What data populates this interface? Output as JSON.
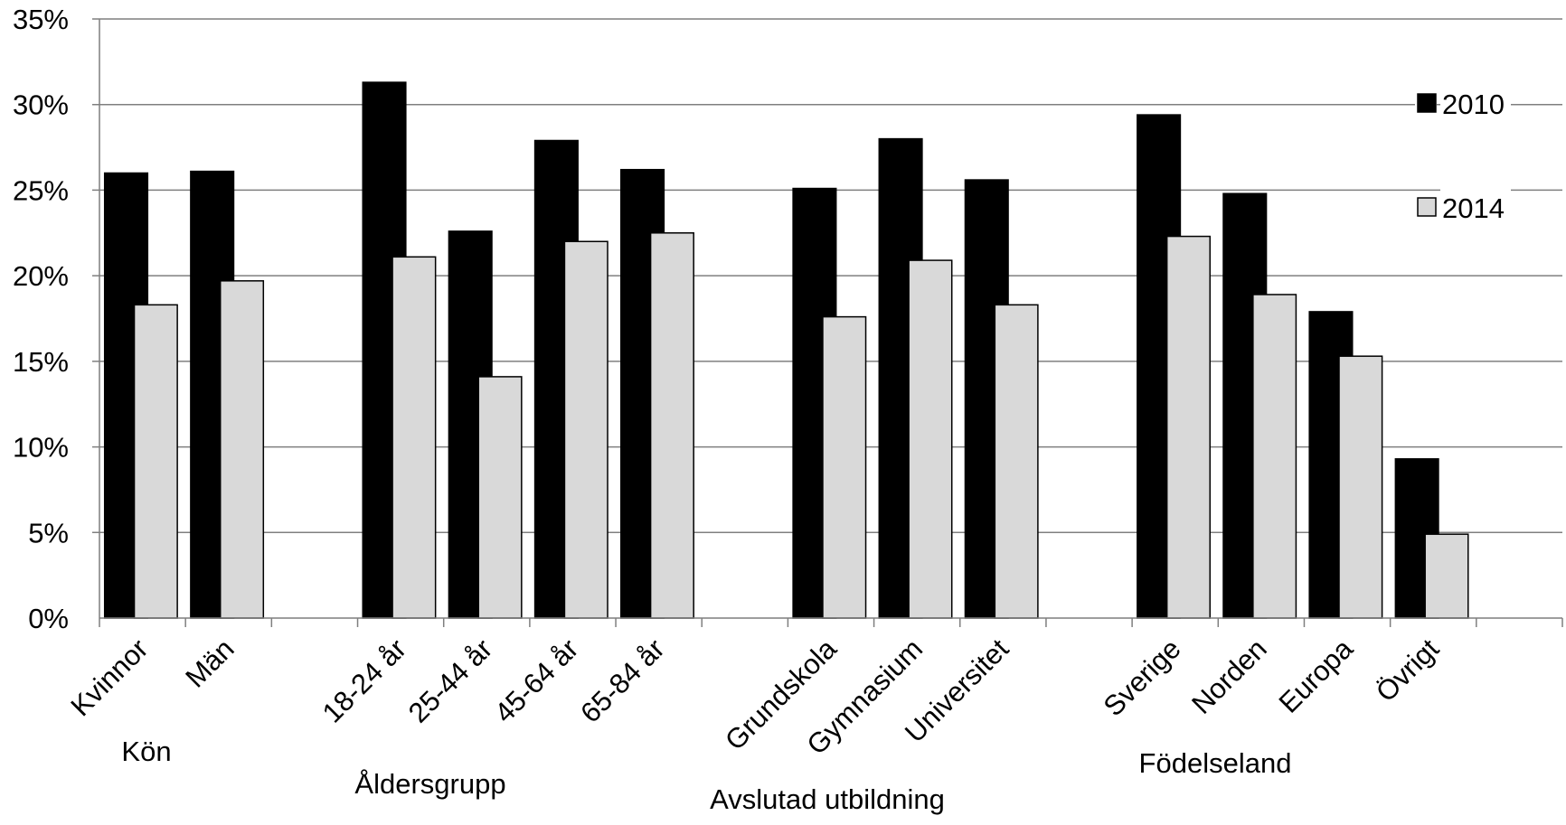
{
  "chart_data": {
    "type": "bar",
    "title": "",
    "xlabel": "",
    "ylabel": "",
    "ylim": [
      0,
      35
    ],
    "y_ticks": [
      "0%",
      "5%",
      "10%",
      "15%",
      "20%",
      "25%",
      "30%",
      "35%"
    ],
    "y_tick_values": [
      0,
      5,
      10,
      15,
      20,
      25,
      30,
      35
    ],
    "grid": true,
    "legend_position": "right",
    "colors": {
      "2010": "#000000",
      "2014": "#d9d9d9"
    },
    "categories": [
      "Kvinnor",
      "Män",
      "",
      "18-24 år",
      "25-44 år",
      "45-64 år",
      "65-84 år",
      "",
      "Grundskola",
      "Gymnasium",
      "Universitet",
      "",
      "Sverige",
      "Norden",
      "Europa",
      "Övrigt",
      ""
    ],
    "series": [
      {
        "name": "2010",
        "values": [
          26.0,
          26.1,
          null,
          31.3,
          22.6,
          27.9,
          26.2,
          null,
          25.1,
          28.0,
          25.6,
          null,
          29.4,
          24.8,
          17.9,
          9.3,
          null
        ]
      },
      {
        "name": "2014",
        "values": [
          18.3,
          19.7,
          null,
          21.1,
          14.1,
          22.0,
          22.5,
          null,
          17.6,
          20.9,
          18.3,
          null,
          22.3,
          18.9,
          15.3,
          4.9,
          null
        ]
      }
    ],
    "group_labels": [
      "Kön",
      "Åldersgrupp",
      "Avslutad utbildning",
      "Födelseland"
    ]
  }
}
